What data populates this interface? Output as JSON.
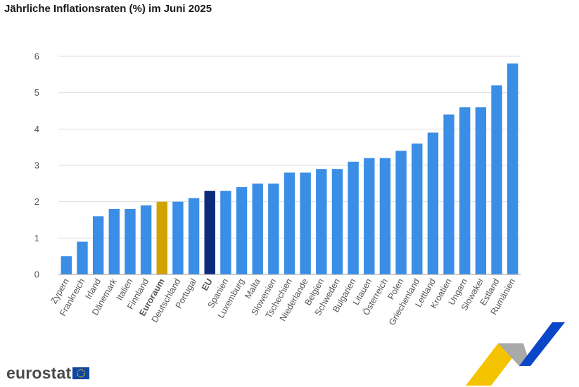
{
  "page": {
    "title": "Jährliche Inflationsraten (%) im Juni 2025"
  },
  "brand": {
    "name": "eurostat",
    "flag_icon": "eu-flag-icon"
  },
  "colors": {
    "default": "#3a8ee6",
    "euro_area": "#d1a300",
    "eu": "#0b2a7a"
  },
  "chart_data": {
    "type": "bar",
    "title": "Jährliche Inflationsraten (%) im Juni 2025",
    "xlabel": "",
    "ylabel": "",
    "ylim": [
      0,
      6
    ],
    "yticks": [
      0,
      1,
      2,
      3,
      4,
      5,
      6
    ],
    "grid": true,
    "legend": "none",
    "categories": [
      "Zypern",
      "Frankreich",
      "Irland",
      "Dänemark",
      "Italien",
      "Finnland",
      "Euroraum",
      "Deutschland",
      "Portugal",
      "EU",
      "Spanien",
      "Luxemburg",
      "Malta",
      "Slowenien",
      "Tschechien",
      "Niederlande",
      "Belgien",
      "Schweden",
      "Bulgarien",
      "Litauen",
      "Österreich",
      "Polen",
      "Griechenland",
      "Lettland",
      "Kroatien",
      "Ungarn",
      "Slowakei",
      "Estland",
      "Rumänien"
    ],
    "values": [
      0.5,
      0.9,
      1.6,
      1.8,
      1.8,
      1.9,
      2.0,
      2.0,
      2.1,
      2.3,
      2.3,
      2.4,
      2.5,
      2.5,
      2.8,
      2.8,
      2.9,
      2.9,
      3.1,
      3.2,
      3.2,
      3.4,
      3.6,
      3.9,
      4.4,
      4.6,
      4.6,
      5.2,
      5.8
    ],
    "highlight": {
      "Euroraum": "euro_area",
      "EU": "eu"
    },
    "bold_labels": [
      "Euroraum",
      "EU"
    ]
  }
}
